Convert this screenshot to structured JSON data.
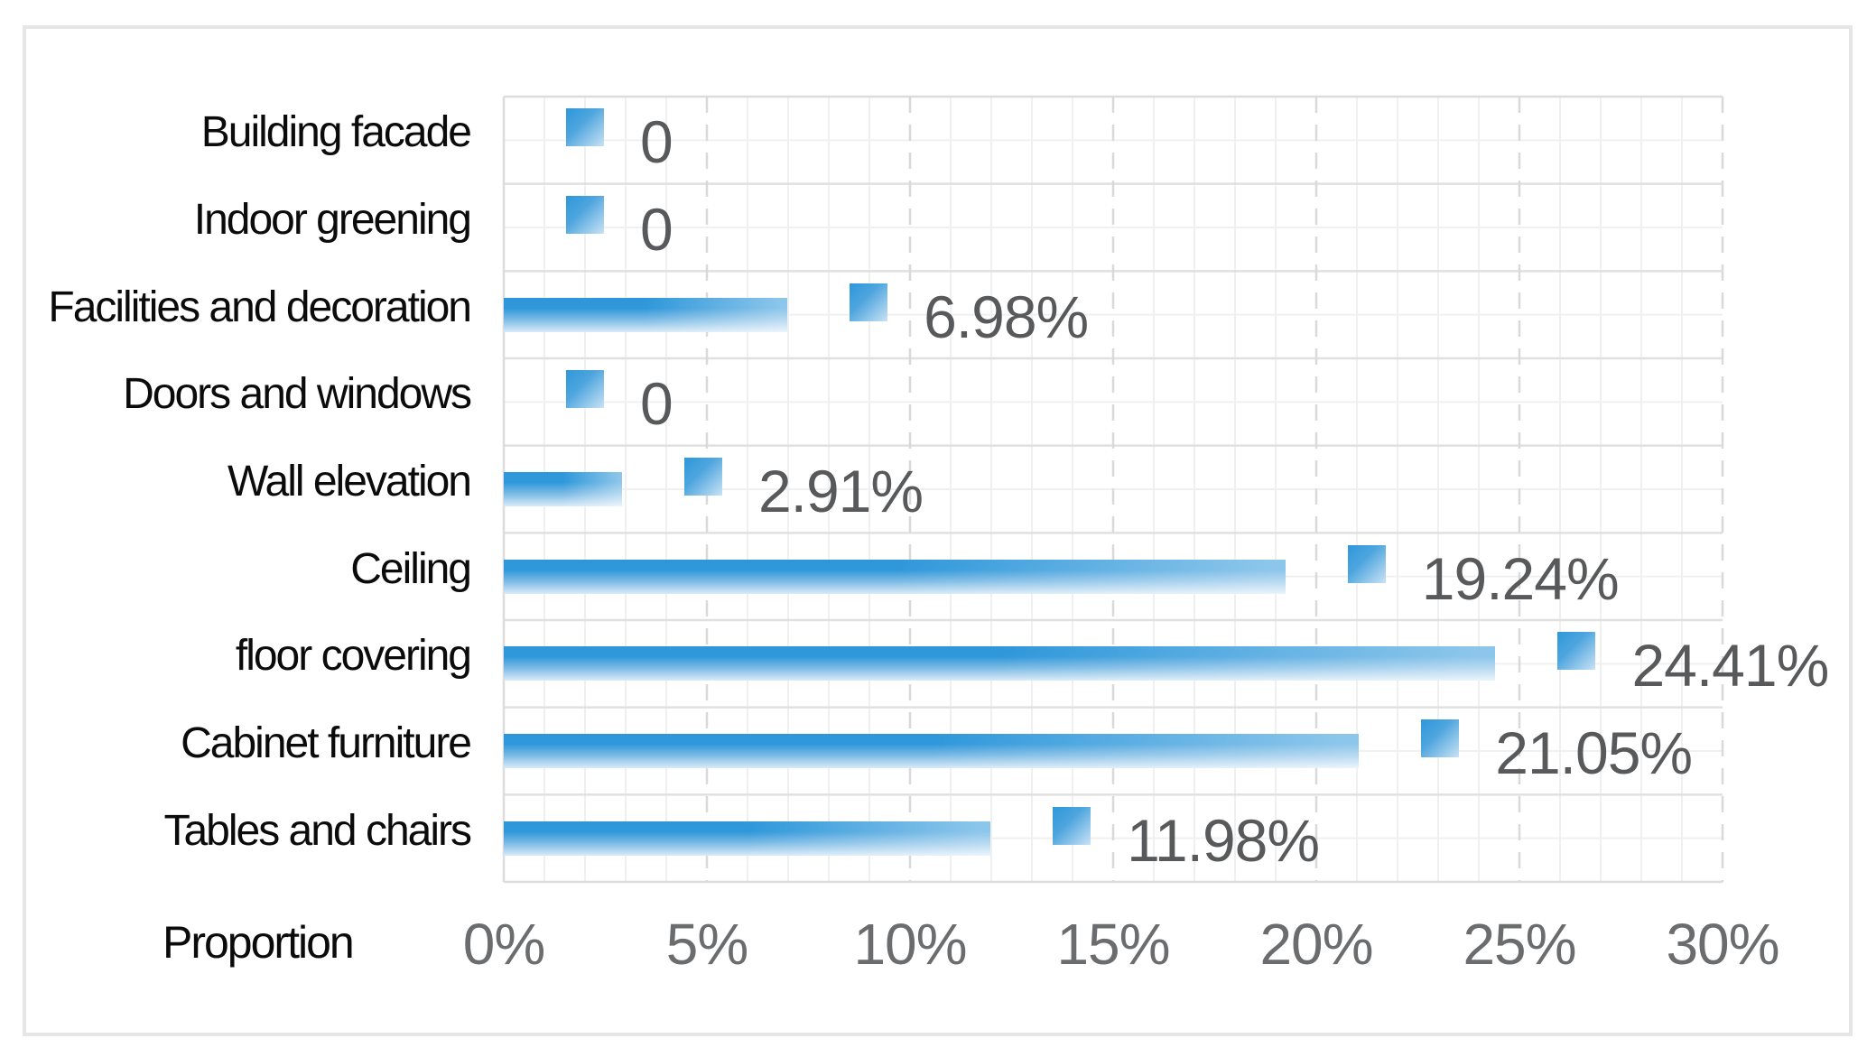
{
  "chart_data": {
    "type": "bar",
    "orientation": "horizontal",
    "title": "",
    "xlabel": "Proportion",
    "ylabel": "",
    "xlim": [
      0,
      30
    ],
    "x_ticks": [
      "0%",
      "5%",
      "10%",
      "15%",
      "20%",
      "25%",
      "30%"
    ],
    "x_tick_values": [
      0,
      5,
      10,
      15,
      20,
      25,
      30
    ],
    "minor_grid_step_pct": 1,
    "major_grid_step_pct": 5,
    "legend": "none",
    "categories": [
      "Building facade",
      "Indoor greening",
      "Facilities and decoration",
      "Doors and windows",
      "Wall elevation",
      "Ceiling",
      "floor covering",
      "Cabinet furniture",
      "Tables and chairs"
    ],
    "values": [
      0,
      0,
      6.98,
      0,
      2.91,
      19.24,
      24.41,
      21.05,
      11.98
    ],
    "data_labels": [
      "0",
      "0",
      "6.98%",
      "0",
      "2.91%",
      "19.24%",
      "24.41%",
      "21.05%",
      "11.98%"
    ],
    "marker_offset_pct": 2,
    "colors": {
      "bar_gradient_start": "#2e97da",
      "bar_gradient_end": "#d9ebf8",
      "marker_gradient_start": "#2e97da",
      "marker_gradient_end": "#c9e2f5",
      "data_label_text": "#58595b",
      "tick_label_text": "#6b6c6e",
      "category_text": "#0b0b0b",
      "minor_gridline": "#f0f0f0",
      "row_boundary_line": "#e0e0e0",
      "major_dashed_gridline": "#d9d9d9",
      "plot_border": "#dcdcdc",
      "figure_border": "#e6e6e6",
      "background": "#ffffff"
    }
  }
}
